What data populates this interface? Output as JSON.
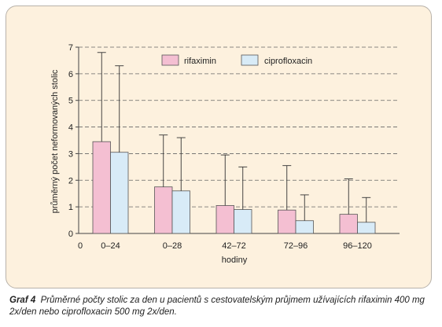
{
  "chart_data": {
    "type": "bar",
    "categories": [
      "0–24",
      "0–28",
      "42–72",
      "72–96",
      "96–120"
    ],
    "series": [
      {
        "name": "rifaximin",
        "values": [
          3.45,
          1.75,
          1.05,
          0.88,
          0.72
        ],
        "error_upper": [
          6.8,
          3.7,
          2.95,
          2.55,
          2.05
        ],
        "color": "#f4bfd2"
      },
      {
        "name": "ciprofloxacin",
        "values": [
          3.05,
          1.6,
          0.9,
          0.48,
          0.42
        ],
        "error_upper": [
          6.3,
          3.6,
          2.5,
          1.45,
          1.35
        ],
        "color": "#d8ebf7"
      }
    ],
    "xlabel": "hodiny",
    "ylabel": "průměrný počet neformovaných stolic",
    "ylim": [
      0,
      7
    ],
    "yticks": [
      "0",
      "1",
      "2",
      "3",
      "4",
      "5",
      "6",
      "7"
    ],
    "x_origin_label": "0",
    "grid": true,
    "legend": "top-right"
  },
  "caption": {
    "label": "Graf 4",
    "text": "Průměrné počty stolic za den u pacientů s cestovatelským průjmem užívajících rifaximin 400 mg 2x/den nebo ciprofloxacin 500 mg 2x/den."
  },
  "colors": {
    "background": "#fdf1de",
    "bar_edge": "#555555",
    "grid": "#666666"
  }
}
